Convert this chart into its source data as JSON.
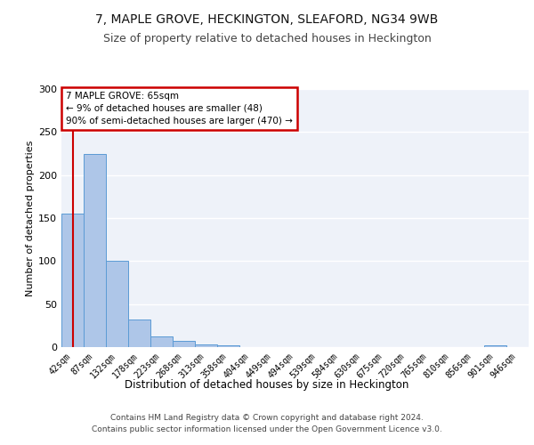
{
  "title1": "7, MAPLE GROVE, HECKINGTON, SLEAFORD, NG34 9WB",
  "title2": "Size of property relative to detached houses in Heckington",
  "xlabel": "Distribution of detached houses by size in Heckington",
  "ylabel": "Number of detached properties",
  "footer1": "Contains HM Land Registry data © Crown copyright and database right 2024.",
  "footer2": "Contains public sector information licensed under the Open Government Licence v3.0.",
  "bar_labels": [
    "42sqm",
    "87sqm",
    "132sqm",
    "178sqm",
    "223sqm",
    "268sqm",
    "313sqm",
    "358sqm",
    "404sqm",
    "449sqm",
    "494sqm",
    "539sqm",
    "584sqm",
    "630sqm",
    "675sqm",
    "720sqm",
    "765sqm",
    "810sqm",
    "856sqm",
    "901sqm",
    "946sqm"
  ],
  "bar_values": [
    155,
    225,
    100,
    32,
    12,
    7,
    3,
    2,
    0,
    0,
    0,
    0,
    0,
    0,
    0,
    0,
    0,
    0,
    0,
    2,
    0
  ],
  "bar_color": "#aec6e8",
  "bar_edge_color": "#5b9bd5",
  "annotation_text": "7 MAPLE GROVE: 65sqm\n← 9% of detached houses are smaller (48)\n90% of semi-detached houses are larger (470) →",
  "annotation_box_color": "#ffffff",
  "annotation_border_color": "#cc0000",
  "vline_color": "#cc0000",
  "ylim": [
    0,
    300
  ],
  "yticks": [
    0,
    50,
    100,
    150,
    200,
    250,
    300
  ],
  "background_color": "#eef2f9",
  "grid_color": "#ffffff",
  "title1_fontsize": 10,
  "title2_fontsize": 9,
  "xlabel_fontsize": 8.5,
  "ylabel_fontsize": 8,
  "tick_fontsize": 7,
  "footer_fontsize": 6.5
}
